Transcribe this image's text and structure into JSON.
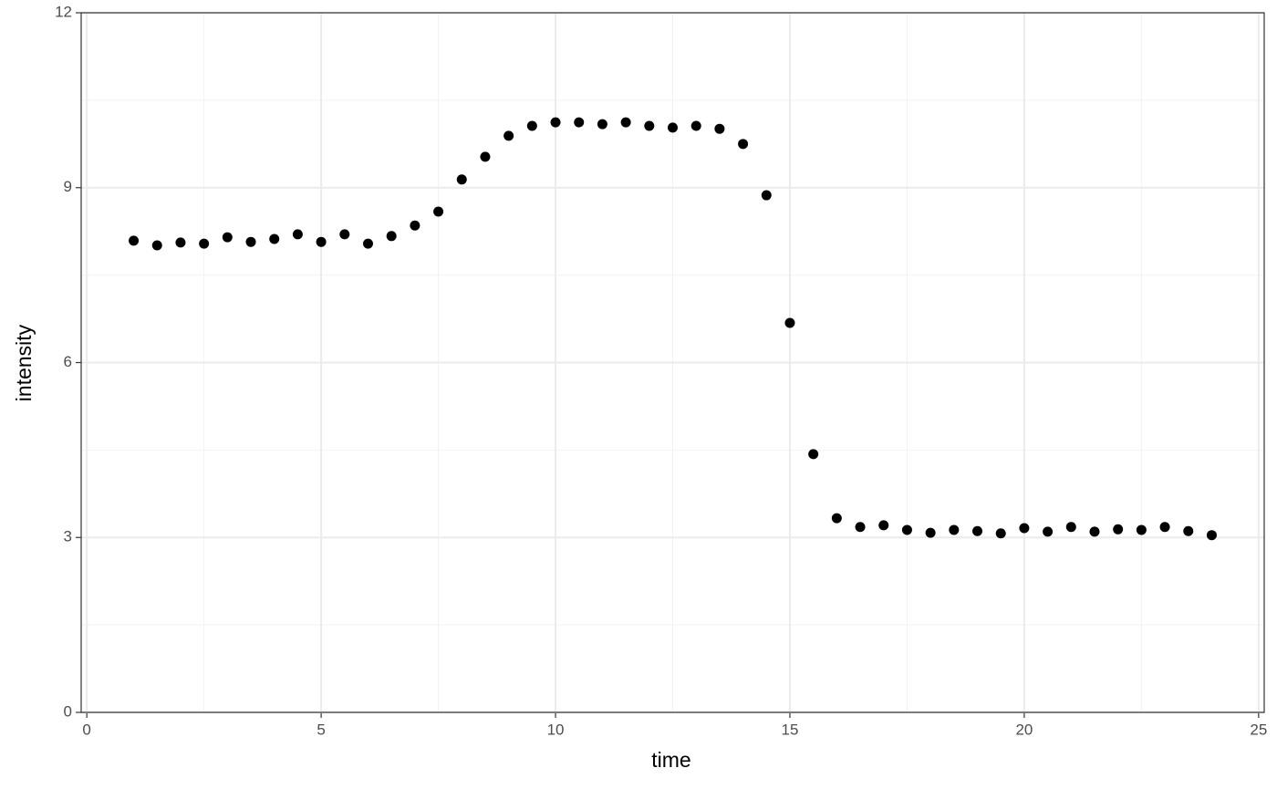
{
  "chart_data": {
    "type": "scatter",
    "x_label": "time",
    "y_label": "intensity",
    "x": [
      1,
      1.5,
      2,
      2.5,
      3,
      3.5,
      4,
      4.5,
      5,
      5.5,
      6,
      6.5,
      7,
      7.5,
      8,
      8.5,
      9,
      9.5,
      10,
      10.5,
      11,
      11.5,
      12,
      12.5,
      13,
      13.5,
      14,
      14.5,
      15,
      15.5,
      16,
      16.5,
      17,
      17.5,
      18,
      18.5,
      19,
      19.5,
      20,
      20.5,
      21,
      21.5,
      22,
      22.5,
      23,
      23.5,
      24
    ],
    "values": [
      8.09,
      8.01,
      8.06,
      8.04,
      8.15,
      8.07,
      8.12,
      8.2,
      8.07,
      8.2,
      8.04,
      8.17,
      8.35,
      8.59,
      9.14,
      9.53,
      9.89,
      10.06,
      10.12,
      10.12,
      10.09,
      10.12,
      10.06,
      10.03,
      10.06,
      10.01,
      9.75,
      8.87,
      6.68,
      4.43,
      3.33,
      3.18,
      3.21,
      3.13,
      3.08,
      3.13,
      3.11,
      3.07,
      3.16,
      3.1,
      3.18,
      3.1,
      3.14,
      3.13,
      3.18,
      3.11,
      3.04
    ],
    "color": "#000000",
    "xlim": [
      -0.12,
      25.12
    ],
    "xticks": [
      0,
      5,
      10,
      15,
      20,
      25
    ],
    "xminorticks": [
      2.5,
      7.5,
      12.5,
      17.5,
      22.5
    ],
    "ylim": [
      0,
      12
    ],
    "yticks": [
      0,
      3,
      6,
      9,
      12
    ],
    "yminorticks": [
      1.5,
      4.5,
      7.5,
      10.5
    ],
    "grid": true
  }
}
